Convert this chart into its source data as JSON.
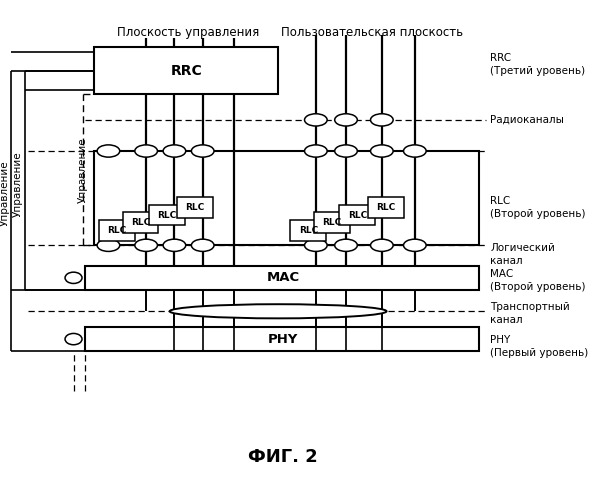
{
  "title": "ФИГ. 2",
  "header_left": "Плоскость управления",
  "header_right": "Пользовательская плоскость",
  "label_rrc_r": "RRC\n(Третий уровень)",
  "label_radio": "Радиоканалы",
  "label_rlc_r": "RLC\n(Второй уровень)",
  "label_logical": "Логический\nканал",
  "label_mac_r": "MAC\n(Второй уровень)",
  "label_transport": "Транспортный\nканал",
  "label_phy_r": "PHY\n(Первый уровень)",
  "label_ctrl1": "Управление",
  "label_ctrl2": "Управление",
  "label_ctrl3": "Управление",
  "bg": "#ffffff"
}
